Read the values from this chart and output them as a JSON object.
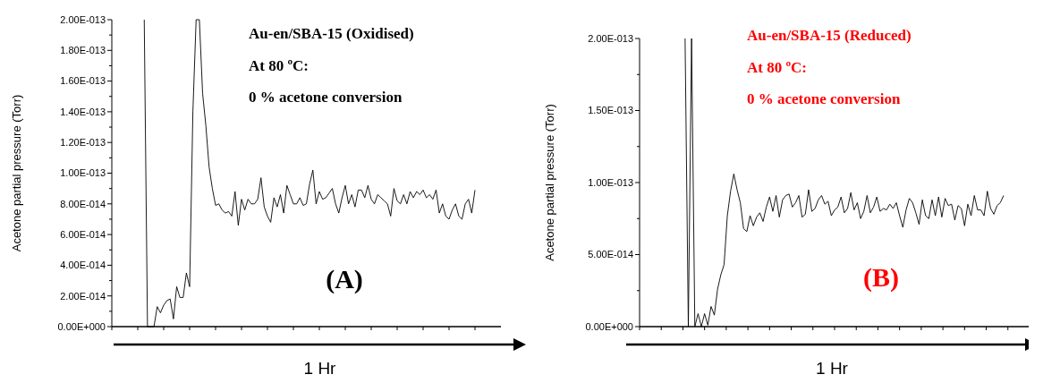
{
  "chart_data": [
    {
      "type": "line",
      "xlabel": "1 Hr",
      "ylabel": "Acetone partial pressure (Torr)",
      "annotations": [
        "Au-en/SBA-15 (Oxidised)",
        "At 80 ºC:",
        "0 % acetone conversion",
        "(A)"
      ],
      "categories": [
        null,
        null,
        null,
        null,
        null,
        null,
        null,
        null,
        null,
        null,
        null,
        null,
        null,
        null,
        null,
        null,
        null,
        null,
        null,
        null,
        null,
        null,
        null,
        null,
        null,
        null,
        null,
        null,
        null,
        null,
        null,
        null,
        null,
        null,
        null,
        null,
        null,
        null,
        null,
        null,
        null,
        null,
        null,
        null,
        null,
        null,
        null,
        null,
        null,
        null,
        null,
        null,
        null,
        null,
        null,
        null,
        null,
        null,
        null,
        null,
        null,
        null,
        null,
        null,
        null,
        null,
        null,
        null,
        null,
        null,
        null,
        null,
        null,
        null,
        null,
        null,
        null,
        null,
        null,
        null,
        null,
        null,
        null,
        null,
        null,
        null,
        null,
        null,
        null,
        null,
        null,
        null,
        null,
        null,
        null,
        null,
        null,
        null,
        null,
        null,
        null,
        null,
        null,
        null,
        null,
        null,
        null,
        null,
        null,
        null,
        null,
        null,
        null,
        null,
        null,
        null,
        null,
        null,
        null,
        null,
        null
      ],
      "ylim": [
        0,
        2e-13
      ],
      "yticks": [
        {
          "value": 0,
          "label": "0.00E+000"
        },
        {
          "value": 1e-14,
          "label": null
        },
        {
          "value": 2e-14,
          "label": "2.00E-014"
        },
        {
          "value": 3e-14,
          "label": null
        },
        {
          "value": 4e-14,
          "label": "4.00E-014"
        },
        {
          "value": 5e-14,
          "label": null
        },
        {
          "value": 6e-14,
          "label": "6.00E-014"
        },
        {
          "value": 7e-14,
          "label": null
        },
        {
          "value": 8e-14,
          "label": "8.00E-014"
        },
        {
          "value": 9e-14,
          "label": null
        },
        {
          "value": 1e-13,
          "label": "1.00E-013"
        },
        {
          "value": 1.1e-13,
          "label": null
        },
        {
          "value": 1.2e-13,
          "label": "1.20E-013"
        },
        {
          "value": 1.3e-13,
          "label": null
        },
        {
          "value": 1.4e-13,
          "label": "1.40E-013"
        },
        {
          "value": 1.5e-13,
          "label": null
        },
        {
          "value": 1.6e-13,
          "label": "1.60E-013"
        },
        {
          "value": 1.7e-13,
          "label": null
        },
        {
          "value": 1.8e-13,
          "label": "1.80E-013"
        },
        {
          "value": 1.9e-13,
          "label": null
        },
        {
          "value": 2e-13,
          "label": "2.00E-013"
        }
      ],
      "series": [
        {
          "color": "#000000",
          "values": [
            null,
            null,
            null,
            null,
            null,
            null,
            null,
            null,
            null,
            null,
            2e-13,
            0,
            0,
            0,
            1.3e-14,
            9e-15,
            1.4e-14,
            1.7e-14,
            1.8e-14,
            5e-15,
            2.6e-14,
            1.9e-14,
            1.9e-14,
            3.5e-14,
            2.6e-14,
            1.4e-13,
            2e-13,
            2e-13,
            1.52e-13,
            1.31e-13,
            1.04e-13,
            9e-14,
            7.9e-14,
            8e-14,
            7.6e-14,
            7.4e-14,
            7.5e-14,
            7.2e-14,
            8.8e-14,
            6.6e-14,
            8.3e-14,
            7.6e-14,
            8.3e-14,
            8e-14,
            8e-14,
            8.3e-14,
            9.7e-14,
            7.8e-14,
            7.2e-14,
            6.8e-14,
            8.4e-14,
            7.8e-14,
            8.6e-14,
            7.4e-14,
            9.2e-14,
            8.6e-14,
            8e-14,
            8e-14,
            8.4e-14,
            7.9e-14,
            8e-14,
            9.3e-14,
            1.02e-13,
            8e-14,
            8.8e-14,
            8.3e-14,
            8.4e-14,
            8.7e-14,
            9e-14,
            8e-14,
            7.4e-14,
            8.4e-14,
            9.2e-14,
            8e-14,
            8.6e-14,
            7.8e-14,
            8.9e-14,
            8.9e-14,
            8.4e-14,
            9.2e-14,
            8.3e-14,
            8e-14,
            8.6e-14,
            8.4e-14,
            8.2e-14,
            8e-14,
            7.2e-14,
            9e-14,
            8.2e-14,
            8e-14,
            8.6e-14,
            8e-14,
            8.8e-14,
            8.4e-14,
            8.8e-14,
            8.6e-14,
            8.9e-14,
            8.4e-14,
            8.6e-14,
            8.3e-14,
            8.9e-14,
            7.4e-14,
            8e-14,
            7.2e-14,
            7e-14,
            7.6e-14,
            8e-14,
            7.2e-14,
            7e-14,
            8e-14,
            8.3e-14,
            7.4e-14,
            8.9e-14,
            null,
            null,
            null,
            null,
            null,
            null,
            null,
            null
          ]
        }
      ]
    },
    {
      "type": "line",
      "xlabel": "1 Hr",
      "ylabel": "Acetone partial pressure (Torr)",
      "annotations": [
        "Au-en/SBA-15 (Reduced)",
        "At 80 ºC:",
        "0 % acetone conversion",
        "(B)"
      ],
      "categories": [
        null,
        null,
        null,
        null,
        null,
        null,
        null,
        null,
        null,
        null,
        null,
        null,
        null,
        null,
        null,
        null,
        null,
        null,
        null,
        null,
        null,
        null,
        null,
        null,
        null,
        null,
        null,
        null,
        null,
        null,
        null,
        null,
        null,
        null,
        null,
        null,
        null,
        null,
        null,
        null,
        null,
        null,
        null,
        null,
        null,
        null,
        null,
        null,
        null,
        null,
        null,
        null,
        null,
        null,
        null,
        null,
        null,
        null,
        null,
        null,
        null,
        null,
        null,
        null,
        null,
        null,
        null,
        null,
        null,
        null,
        null,
        null,
        null,
        null,
        null,
        null,
        null,
        null,
        null,
        null,
        null,
        null,
        null,
        null,
        null,
        null,
        null,
        null,
        null,
        null,
        null,
        null,
        null,
        null,
        null,
        null,
        null,
        null,
        null,
        null,
        null,
        null,
        null,
        null,
        null,
        null,
        null,
        null,
        null,
        null,
        null,
        null,
        null,
        null,
        null,
        null,
        null,
        null,
        null,
        null,
        null
      ],
      "ylim": [
        0,
        2e-13
      ],
      "yticks": [
        {
          "value": 0,
          "label": "0.00E+000"
        },
        {
          "value": 2.5e-14,
          "label": null
        },
        {
          "value": 5e-14,
          "label": "5.00E-014"
        },
        {
          "value": 7.5e-14,
          "label": null
        },
        {
          "value": 1e-13,
          "label": "1.00E-013"
        },
        {
          "value": 1.25e-13,
          "label": null
        },
        {
          "value": 1.5e-13,
          "label": "1.50E-013"
        },
        {
          "value": 1.75e-13,
          "label": null
        },
        {
          "value": 2e-13,
          "label": "2.00E-013"
        }
      ],
      "series": [
        {
          "color": "#000000",
          "values": [
            null,
            null,
            null,
            null,
            null,
            null,
            null,
            null,
            null,
            null,
            null,
            null,
            null,
            null,
            2e-13,
            0,
            2e-13,
            0,
            9e-15,
            0,
            9e-15,
            1e-15,
            1.4e-14,
            8e-15,
            2.6e-14,
            3.6e-14,
            4.3e-14,
            7.7e-14,
            9.4e-14,
            1.06e-13,
            9.5e-14,
            8.6e-14,
            6.8e-14,
            6.6e-14,
            7.7e-14,
            7e-14,
            7.6e-14,
            7.9e-14,
            7.3e-14,
            8.3e-14,
            9e-14,
            8e-14,
            9.1e-14,
            7.6e-14,
            8.8e-14,
            9.1e-14,
            9.2e-14,
            8.3e-14,
            8.6e-14,
            9.1e-14,
            7.6e-14,
            7.8e-14,
            9.5e-14,
            8e-14,
            8.2e-14,
            8.8e-14,
            9.1e-14,
            8.5e-14,
            8.7e-14,
            7.7e-14,
            8.1e-14,
            8.3e-14,
            9e-14,
            7.9e-14,
            8.2e-14,
            9.3e-14,
            8.1e-14,
            8.6e-14,
            7.5e-14,
            8e-14,
            9.1e-14,
            7.9e-14,
            8.3e-14,
            9e-14,
            8e-14,
            8.2e-14,
            8.1e-14,
            8.5e-14,
            8.2e-14,
            8.6e-14,
            7.7e-14,
            6.9e-14,
            8.1e-14,
            8.9e-14,
            8.6e-14,
            7.9e-14,
            7.1e-14,
            8.8e-14,
            7.7e-14,
            7.5e-14,
            8.8e-14,
            7.7e-14,
            9e-14,
            7.6e-14,
            8.9e-14,
            8.4e-14,
            8.5e-14,
            7.4e-14,
            8.4e-14,
            8.2e-14,
            7e-14,
            8.5e-14,
            7.7e-14,
            9.1e-14,
            8.1e-14,
            8.1e-14,
            7.7e-14,
            9.4e-14,
            8.2e-14,
            7.8e-14,
            8.4e-14,
            8.6e-14,
            9.1e-14,
            null,
            null,
            null,
            null,
            null,
            null,
            null,
            null
          ]
        }
      ]
    }
  ]
}
